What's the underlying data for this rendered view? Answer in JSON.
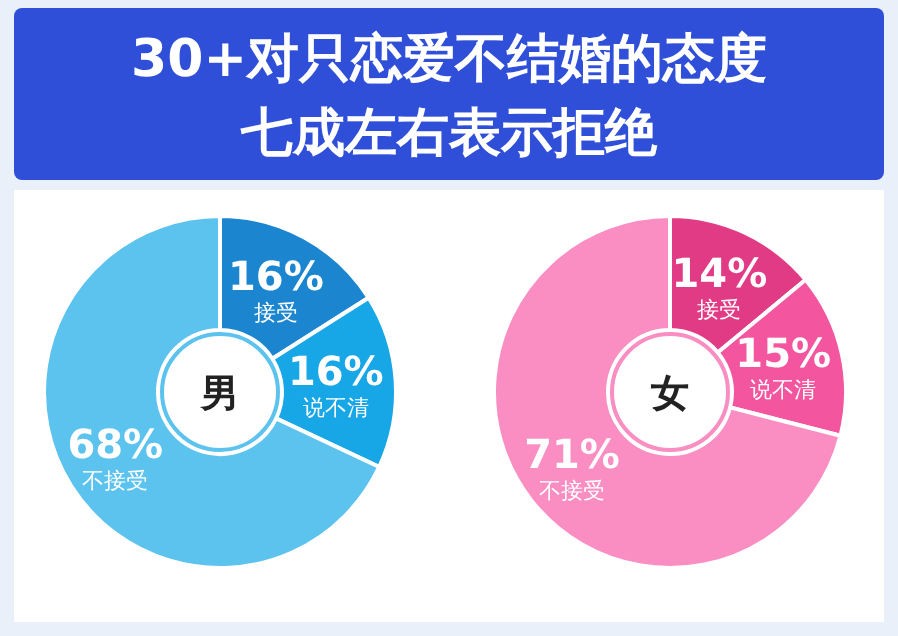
{
  "chart_data": [
    {
      "type": "donut",
      "title": "30+对只恋爱不结婚的态度",
      "subtitle": "七成左右表示拒绝",
      "annotations": [
        "男"
      ],
      "categories": [
        "接受",
        "说不清",
        "不接受"
      ],
      "values": [
        16,
        16,
        68
      ],
      "colors": [
        "#1b86cf",
        "#17a6e6",
        "#5cc3ee"
      ],
      "value_labels": [
        "16%",
        "16%",
        "68%"
      ]
    },
    {
      "type": "donut",
      "annotations": [
        "女"
      ],
      "categories": [
        "接受",
        "说不清",
        "不接受"
      ],
      "values": [
        14,
        15,
        71
      ],
      "colors": [
        "#e23b86",
        "#f3559f",
        "#fa8dc2"
      ],
      "value_labels": [
        "14%",
        "15%",
        "71%"
      ]
    }
  ]
}
